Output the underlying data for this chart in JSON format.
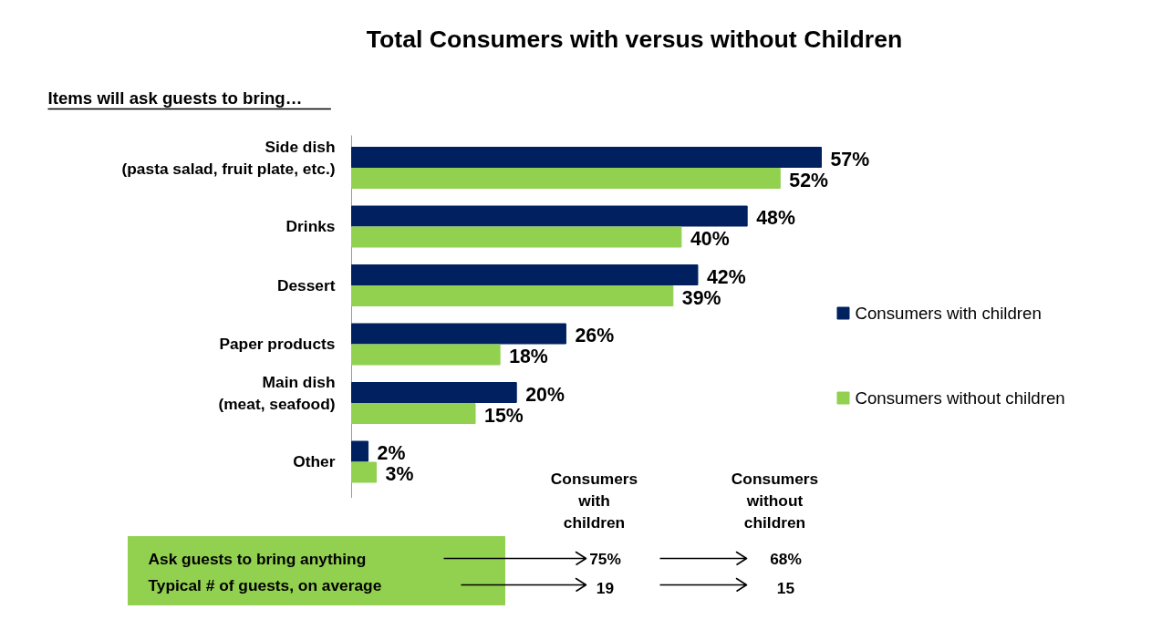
{
  "chart_data": {
    "type": "bar",
    "orientation": "horizontal",
    "title": "Total Consumers with versus without Children",
    "subtitle": "Items will ask guests to bring…",
    "categories": [
      "Side dish\n(pasta salad, fruit plate, etc.)",
      "Drinks",
      "Dessert",
      "Paper products",
      "Main dish\n(meat, seafood)",
      "Other"
    ],
    "series": [
      {
        "name": "Consumers with children",
        "color": "#002060",
        "values": [
          57,
          48,
          42,
          26,
          20,
          2
        ],
        "value_labels": [
          "57%",
          "48%",
          "42%",
          "26%",
          "20%",
          "2%"
        ]
      },
      {
        "name": "Consumers without children",
        "color": "#92d050",
        "values": [
          52,
          40,
          39,
          18,
          15,
          3
        ],
        "value_labels": [
          "52%",
          "40%",
          "39%",
          "18%",
          "15%",
          "3%"
        ]
      }
    ],
    "legend": "right",
    "annotations": [
      "Consumers\nwith\nchildren",
      "Consumers\nwithout\nchildren",
      "Ask guests to bring anything",
      "75%",
      "68%",
      "Typical # of guests, on average",
      "19",
      "15"
    ]
  }
}
